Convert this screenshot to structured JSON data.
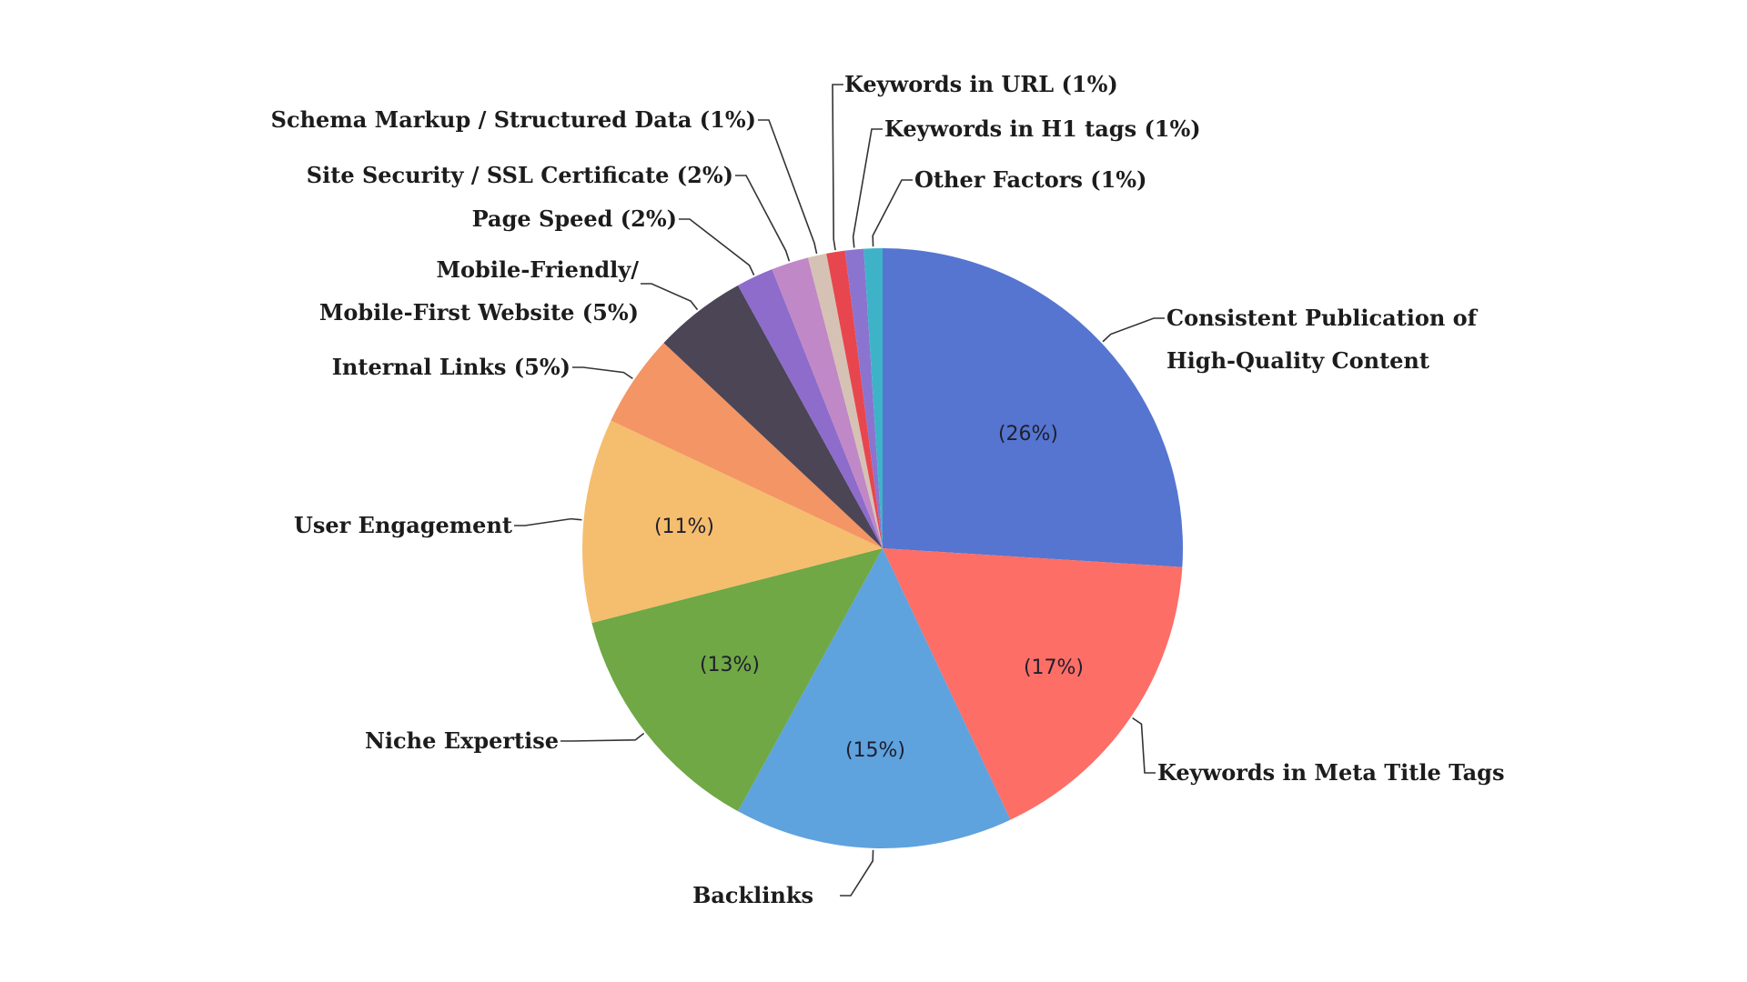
{
  "chart_data": {
    "type": "pie",
    "title": "",
    "slices": [
      {
        "name": "Consistent Publication of High-Quality Content",
        "value": 26,
        "percent_label": "(26%)",
        "label_lines": [
          "Consistent Publication of",
          "High-Quality Content"
        ],
        "color": "#5575d0"
      },
      {
        "name": "Keywords in Meta Title Tags",
        "value": 17,
        "percent_label": "(17%)",
        "label_lines": [
          "Keywords in Meta Title Tags"
        ],
        "color": "#fd6e66"
      },
      {
        "name": "Backlinks",
        "value": 15,
        "percent_label": "(15%)",
        "label_lines": [
          "Backlinks"
        ],
        "color": "#5ea2de"
      },
      {
        "name": "Niche Expertise",
        "value": 13,
        "percent_label": "(13%)",
        "label_lines": [
          "Niche Expertise"
        ],
        "color": "#6fa844"
      },
      {
        "name": "User Engagement",
        "value": 11,
        "percent_label": "(11%)",
        "label_lines": [
          "User Engagement"
        ],
        "color": "#f5bd6e"
      },
      {
        "name": "Internal Links",
        "value": 5,
        "percent_label": "",
        "label_lines": [
          "Internal Links (5%)"
        ],
        "color": "#f39565"
      },
      {
        "name": "Mobile-Friendly/ Mobile-First Website",
        "value": 5,
        "percent_label": "",
        "label_lines": [
          "Mobile-Friendly/",
          "Mobile-First Website (5%)"
        ],
        "color": "#4b4556"
      },
      {
        "name": "Page Speed",
        "value": 2,
        "percent_label": "",
        "label_lines": [
          "Page Speed (2%)"
        ],
        "color": "#8e6ccb"
      },
      {
        "name": "Site Security / SSL Certificate",
        "value": 2,
        "percent_label": "",
        "label_lines": [
          "Site Security / SSL Certificate (2%)"
        ],
        "color": "#c088c7"
      },
      {
        "name": "Schema Markup / Structured Data",
        "value": 1,
        "percent_label": "",
        "label_lines": [
          "Schema Markup / Structured Data (1%)"
        ],
        "color": "#d6c2b4"
      },
      {
        "name": "Keywords in URL",
        "value": 1,
        "percent_label": "",
        "label_lines": [
          "Keywords in URL (1%)"
        ],
        "color": "#e8464e"
      },
      {
        "name": "Keywords in H1 tags",
        "value": 1,
        "percent_label": "",
        "label_lines": [
          "Keywords in H1 tags (1%)"
        ],
        "color": "#8b74d0"
      },
      {
        "name": "Other Factors",
        "value": 1,
        "percent_label": "",
        "label_lines": [
          "Other Factors (1%)"
        ],
        "color": "#3eb3c8"
      }
    ]
  }
}
